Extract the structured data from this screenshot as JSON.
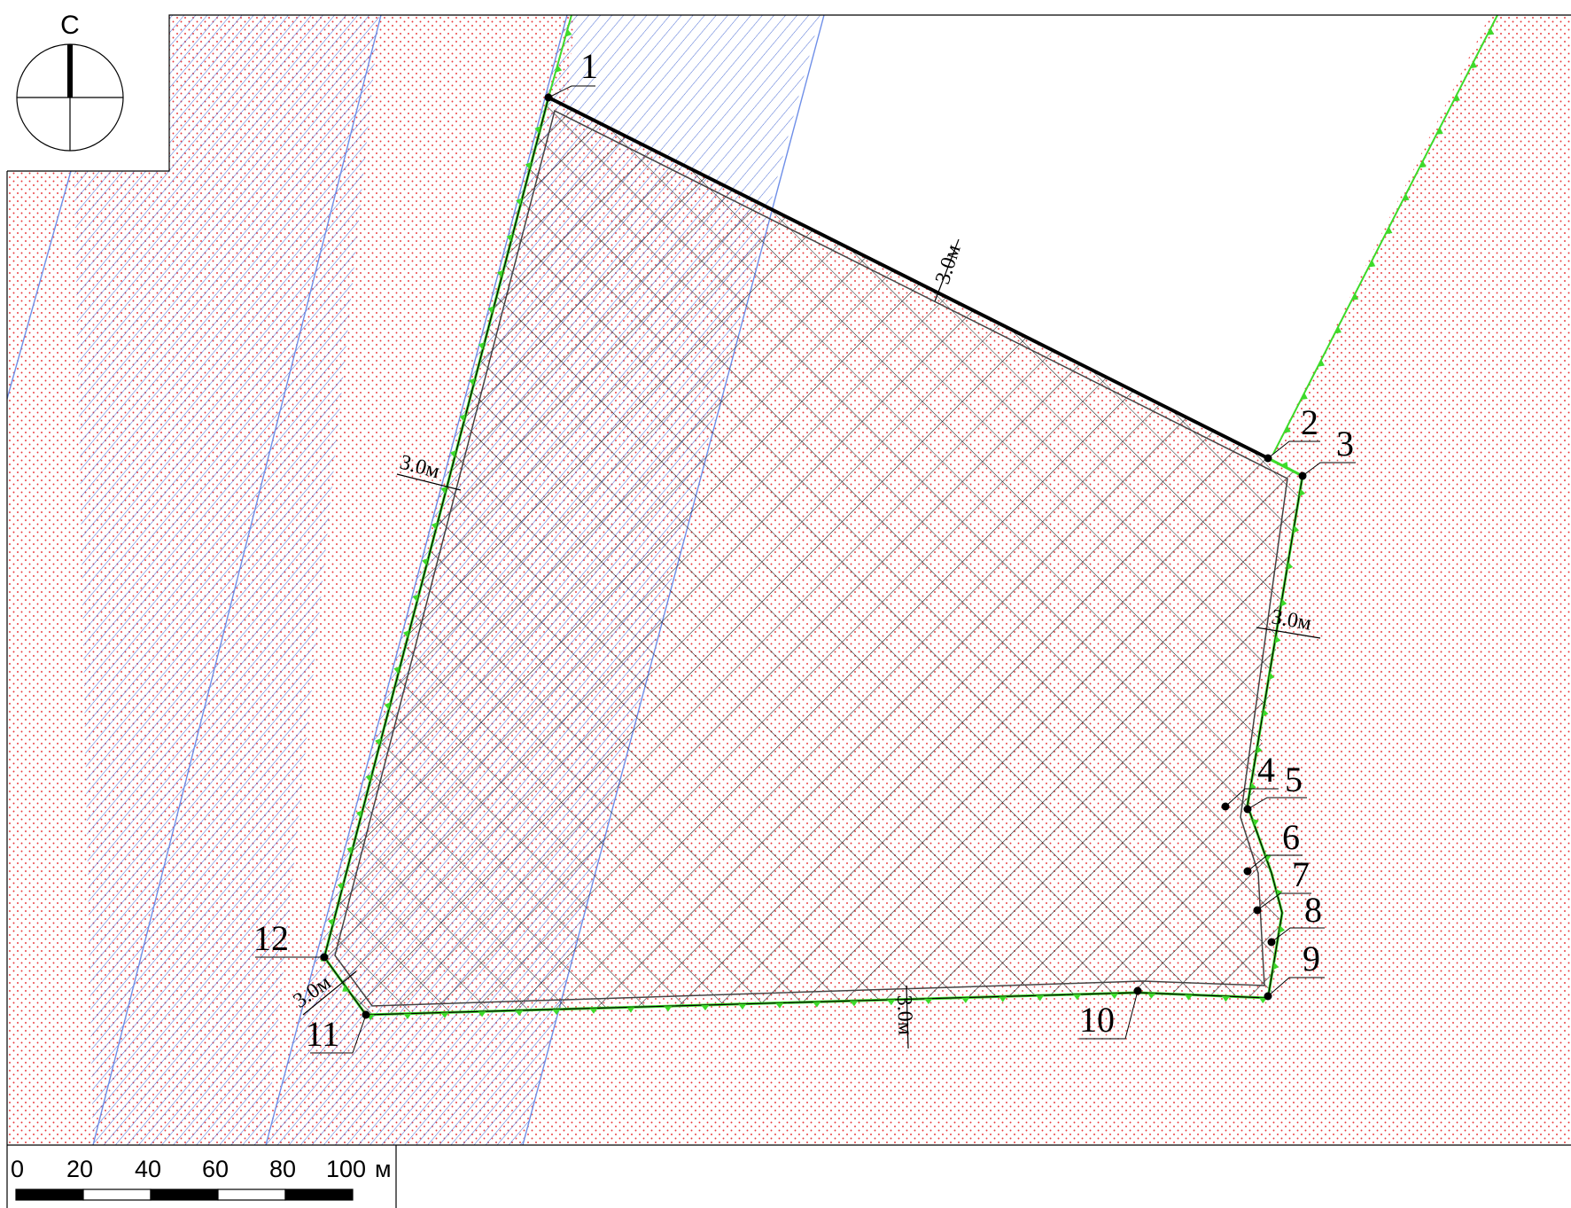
{
  "compass": {
    "label": "С"
  },
  "colors": {
    "dots": "#e8383a",
    "hatch": "#3a5fd0",
    "crosshatch": "#000000",
    "boundary_green": "#3ddb2a",
    "grey_outline": "#6e6e6e"
  },
  "points": [
    {
      "label": "1"
    },
    {
      "label": "2"
    },
    {
      "label": "3"
    },
    {
      "label": "4"
    },
    {
      "label": "5"
    },
    {
      "label": "6"
    },
    {
      "label": "7"
    },
    {
      "label": "8"
    },
    {
      "label": "9"
    },
    {
      "label": "10"
    },
    {
      "label": "11"
    },
    {
      "label": "12"
    }
  ],
  "setbacks": [
    {
      "label": "3.0м"
    },
    {
      "label": "3.0м"
    },
    {
      "label": "3.0м"
    },
    {
      "label": "3.0м"
    },
    {
      "label": "3.0м"
    }
  ],
  "scale_bar": {
    "ticks": [
      "0",
      "20",
      "40",
      "60",
      "80",
      "100"
    ],
    "unit": "м"
  }
}
